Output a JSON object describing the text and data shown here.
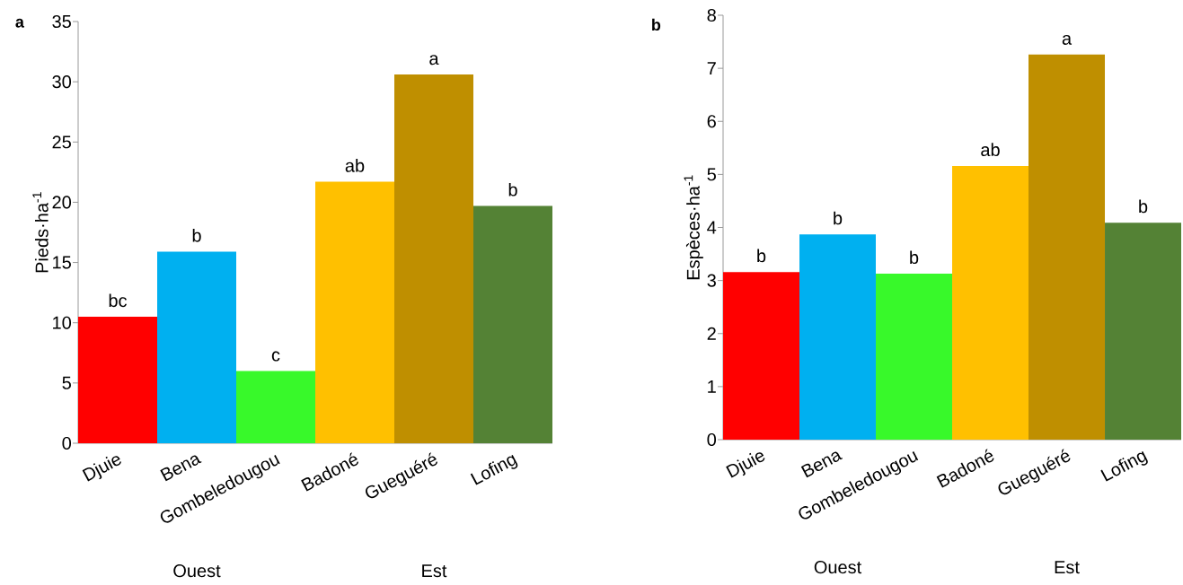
{
  "chart_data": [
    {
      "type": "bar",
      "title": "a",
      "ylabel": "Pieds·ha$^{-1}$",
      "categories": [
        "Djuie",
        "Bena",
        "Gombeledougou",
        "Badoné",
        "Gueguéré",
        "Lofing"
      ],
      "values": [
        10.5,
        15.9,
        6.0,
        21.7,
        30.6,
        19.7
      ],
      "colors": [
        "#ff0000",
        "#00b0f0",
        "#38f92a",
        "#ffc000",
        "#bf8f00",
        "#548235"
      ],
      "ylim": [
        0,
        35
      ],
      "yticks": [
        0,
        5,
        10,
        15,
        20,
        25,
        30,
        35
      ],
      "annotations": [
        {
          "text": "bc",
          "x": "Djuie",
          "y": 10.5
        },
        {
          "text": "b",
          "x": "Bena",
          "y": 15.9
        },
        {
          "text": "c",
          "x": "Gombeledougou",
          "y": 6.0
        },
        {
          "text": "ab",
          "x": "Badoné",
          "y": 21.7
        },
        {
          "text": "a",
          "x": "Gueguéré",
          "y": 30.6
        },
        {
          "text": "b",
          "x": "Lofing",
          "y": 19.7
        },
        "Ouest",
        "Est"
      ]
    },
    {
      "type": "bar",
      "title": "b",
      "ylabel": "Espèces·ha$^{-1}$",
      "categories": [
        "Djuie",
        "Bena",
        "Gombeledougou",
        "Badoné",
        "Gueguéré",
        "Lofing"
      ],
      "values": [
        3.16,
        3.87,
        3.13,
        5.16,
        7.26,
        4.09
      ],
      "colors": [
        "#ff0000",
        "#00b0f0",
        "#38f92a",
        "#ffc000",
        "#bf8f00",
        "#548235"
      ],
      "ylim": [
        0,
        8
      ],
      "yticks": [
        0,
        1,
        2,
        3,
        4,
        5,
        6,
        7,
        8
      ],
      "annotations": [
        {
          "text": "b",
          "x": "Djuie",
          "y": 3.16
        },
        {
          "text": "b",
          "x": "Bena",
          "y": 3.87
        },
        {
          "text": "b",
          "x": "Gombeledougou",
          "y": 3.13
        },
        {
          "text": "ab",
          "x": "Badoné",
          "y": 5.16
        },
        {
          "text": "a",
          "x": "Gueguéré",
          "y": 7.26
        },
        {
          "text": "b",
          "x": "Lofing",
          "y": 4.09
        },
        "Ouest",
        "Est"
      ]
    }
  ]
}
